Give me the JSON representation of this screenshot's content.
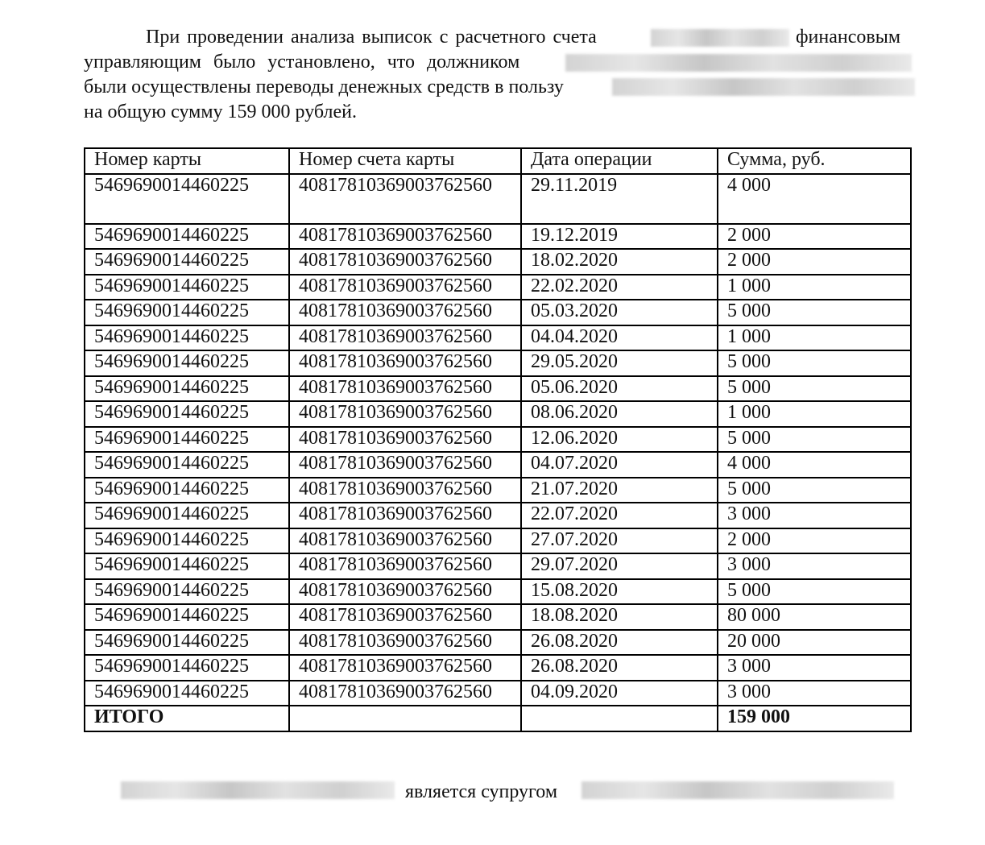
{
  "paragraph": {
    "l1a": "При проведении анализа выписок с расчетного счета",
    "l1b": "финансовым",
    "l2": "управляющим было установлено, что должником",
    "l3": "были осуществлены переводы денежных средств в пользу",
    "l4": "на общую сумму 159 000 рублей."
  },
  "table": {
    "headers": [
      "Номер карты",
      "Номер счета карты",
      "Дата операции",
      "Сумма, руб."
    ],
    "rows": [
      [
        "5469690014460225",
        "40817810369003762560",
        "29.11.2019",
        "4 000"
      ],
      [
        "5469690014460225",
        "40817810369003762560",
        "19.12.2019",
        "2 000"
      ],
      [
        "5469690014460225",
        "40817810369003762560",
        "18.02.2020",
        "2 000"
      ],
      [
        "5469690014460225",
        "40817810369003762560",
        "22.02.2020",
        "1 000"
      ],
      [
        "5469690014460225",
        "40817810369003762560",
        "05.03.2020",
        "5 000"
      ],
      [
        "5469690014460225",
        "40817810369003762560",
        "04.04.2020",
        "1 000"
      ],
      [
        "5469690014460225",
        "40817810369003762560",
        "29.05.2020",
        "5 000"
      ],
      [
        "5469690014460225",
        "40817810369003762560",
        "05.06.2020",
        "5 000"
      ],
      [
        "5469690014460225",
        "40817810369003762560",
        "08.06.2020",
        "1 000"
      ],
      [
        "5469690014460225",
        "40817810369003762560",
        "12.06.2020",
        "5 000"
      ],
      [
        "5469690014460225",
        "40817810369003762560",
        "04.07.2020",
        "4 000"
      ],
      [
        "5469690014460225",
        "40817810369003762560",
        "21.07.2020",
        "5 000"
      ],
      [
        "5469690014460225",
        "40817810369003762560",
        "22.07.2020",
        "3 000"
      ],
      [
        "5469690014460225",
        "40817810369003762560",
        "27.07.2020",
        "2 000"
      ],
      [
        "5469690014460225",
        "40817810369003762560",
        "29.07.2020",
        "3 000"
      ],
      [
        "5469690014460225",
        "40817810369003762560",
        "15.08.2020",
        "5 000"
      ],
      [
        "5469690014460225",
        "40817810369003762560",
        "18.08.2020",
        "80 000"
      ],
      [
        "5469690014460225",
        "40817810369003762560",
        "26.08.2020",
        "20 000"
      ],
      [
        "5469690014460225",
        "40817810369003762560",
        "26.08.2020",
        "3 000"
      ],
      [
        "5469690014460225",
        "40817810369003762560",
        "04.09.2020",
        "3 000"
      ]
    ],
    "total": {
      "label": "ИТОГО",
      "sum": "159 000"
    }
  },
  "footer": {
    "text": "является супругом"
  }
}
